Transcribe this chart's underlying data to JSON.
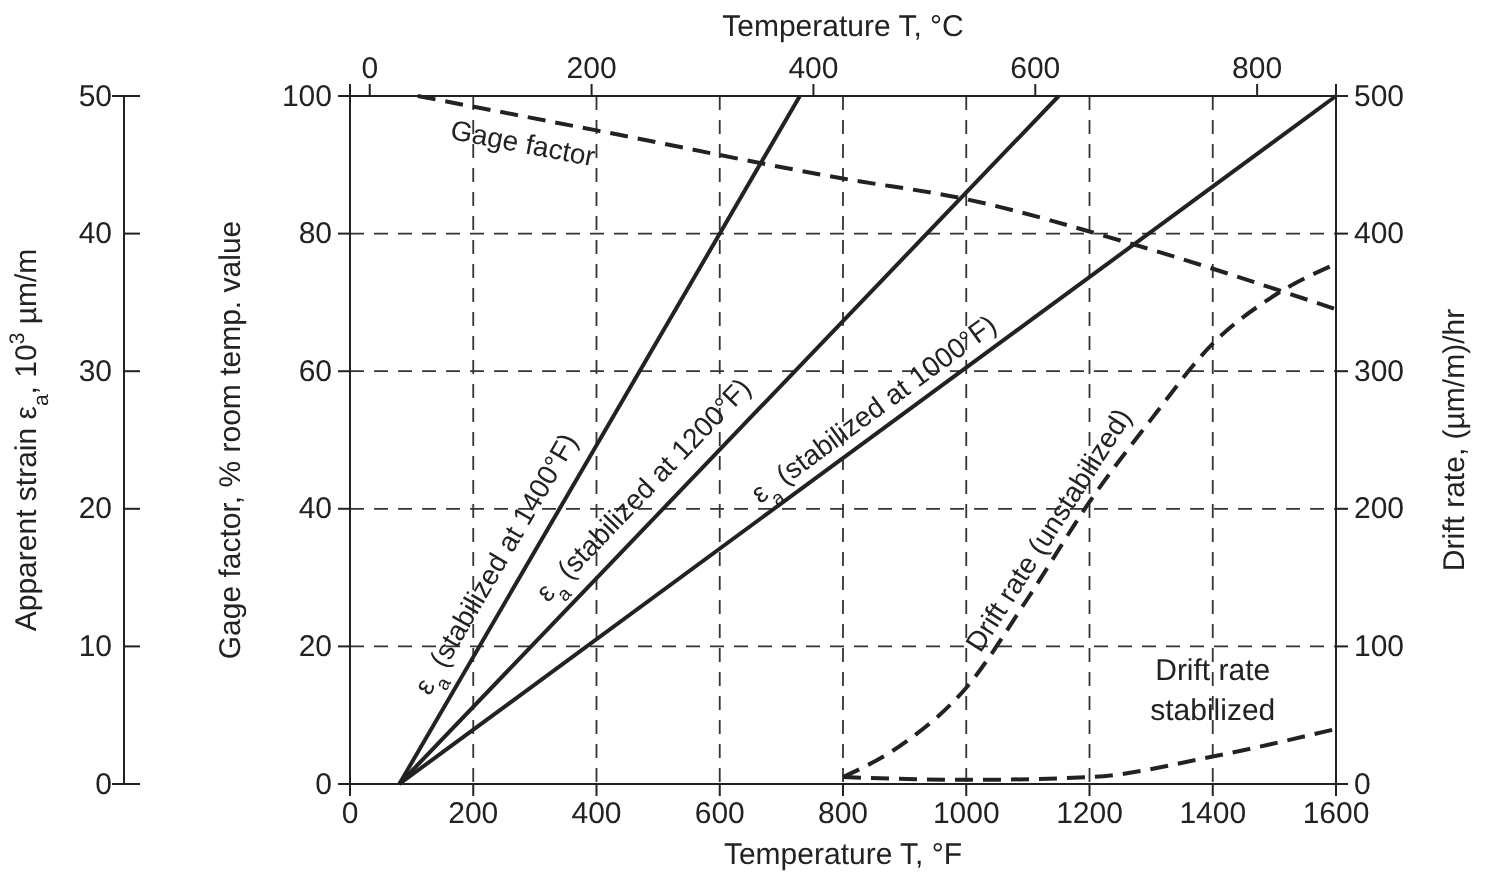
{
  "chart_data": {
    "type": "line",
    "xlabel": "Temperature T, °F",
    "x2label": "Temperature T, °C",
    "ylabel": "Gage factor, % room temp. value",
    "y2label": "Drift rate, (µm/m)/hr",
    "y3label": "Apparent strain ε$_{a}$, 10$^{3}$ µm/m",
    "xlim": [
      0,
      1600
    ],
    "xticks": [
      0,
      200,
      400,
      600,
      800,
      1000,
      1200,
      1400,
      1600
    ],
    "x2lim": [
      -17.8,
      871.1
    ],
    "x2ticks": [
      0,
      200,
      400,
      600,
      800
    ],
    "ylim": [
      0,
      100
    ],
    "yticks": [
      0,
      20,
      40,
      60,
      80,
      100
    ],
    "y2lim": [
      0,
      500
    ],
    "y2ticks": [
      0,
      100,
      200,
      300,
      400,
      500
    ],
    "y3lim": [
      0,
      50
    ],
    "y3ticks": [
      0,
      10,
      20,
      30,
      40,
      50
    ],
    "grid": true,
    "legend": false,
    "marker": "none",
    "series": [
      {
        "name": "ε$_{a}$ (stabilized at 1400°F)",
        "color": "#222222",
        "axis": "y3",
        "line_style": "solid",
        "x": [
          80,
          730
        ],
        "values": [
          0,
          50
        ]
      },
      {
        "name": "ε$_{a}$ (stabilized at 1200°F)",
        "color": "#222222",
        "axis": "y3",
        "line_style": "solid",
        "x": [
          80,
          1150
        ],
        "values": [
          0,
          50
        ]
      },
      {
        "name": "ε$_{a}$ (stabilized at 1000°F)",
        "color": "#222222",
        "axis": "y3",
        "line_style": "solid",
        "x": [
          80,
          1600
        ],
        "values": [
          0,
          50
        ]
      },
      {
        "name": "Gage factor",
        "color": "#222222",
        "axis": "y",
        "line_style": "dashed",
        "x": [
          110,
          400,
          800,
          1000,
          1250,
          1600
        ],
        "values": [
          100,
          95,
          88,
          85,
          79,
          69
        ]
      },
      {
        "name": "Drift rate (unstabilized)",
        "color": "#222222",
        "axis": "y2",
        "line_style": "dashed",
        "x": [
          800,
          900,
          1000,
          1100,
          1200,
          1300,
          1400,
          1500,
          1600
        ],
        "values": [
          5,
          30,
          70,
          135,
          205,
          265,
          320,
          355,
          378
        ]
      },
      {
        "name": "Drift rate stabilized",
        "color": "#222222",
        "axis": "y2",
        "line_style": "dashed",
        "x": [
          800,
          1000,
          1200,
          1400,
          1600
        ],
        "values": [
          5,
          3,
          5,
          20,
          40
        ]
      }
    ]
  }
}
